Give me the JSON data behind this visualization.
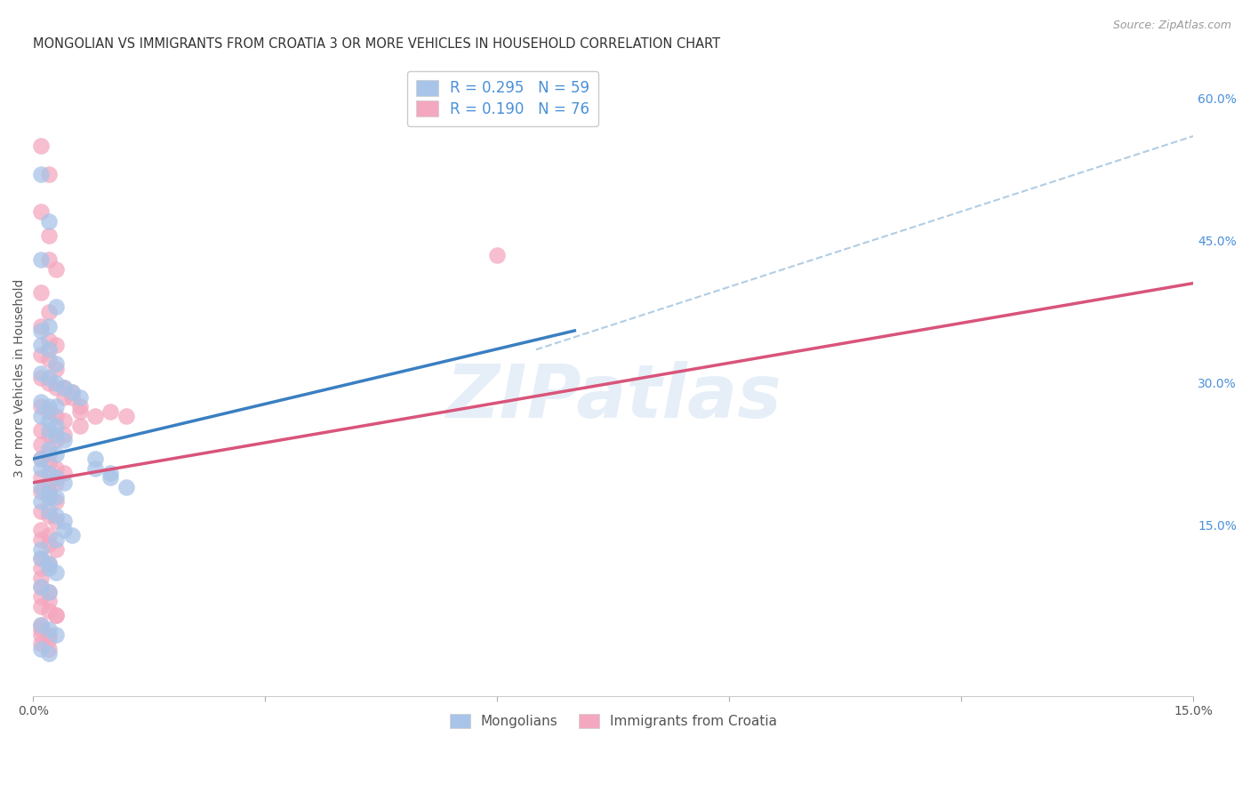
{
  "title": "MONGOLIAN VS IMMIGRANTS FROM CROATIA 3 OR MORE VEHICLES IN HOUSEHOLD CORRELATION CHART",
  "source": "Source: ZipAtlas.com",
  "ylabel": "3 or more Vehicles in Household",
  "xlim": [
    0.0,
    0.15
  ],
  "ylim": [
    -0.03,
    0.64
  ],
  "blue_R": "0.295",
  "blue_N": "59",
  "pink_R": "0.190",
  "pink_N": "76",
  "blue_color": "#a8c4e8",
  "pink_color": "#f4a8c0",
  "blue_line_color": "#3a7fc1",
  "pink_line_color": "#d9547a",
  "dashed_line_color": "#90b8d8",
  "watermark": "ZIPatlas",
  "legend_bottom_blue": "Mongolians",
  "legend_bottom_pink": "Immigrants from Croatia",
  "background_color": "#ffffff",
  "grid_color": "#cccccc",
  "blue_line": [
    0.0,
    0.22,
    0.07,
    0.355
  ],
  "pink_line": [
    0.0,
    0.195,
    0.15,
    0.405
  ],
  "dashed_line": [
    0.065,
    0.335,
    0.15,
    0.56
  ],
  "blue_scatter_x": [
    0.001,
    0.002,
    0.001,
    0.003,
    0.002,
    0.001,
    0.001,
    0.002,
    0.003,
    0.001,
    0.002,
    0.003,
    0.004,
    0.005,
    0.006,
    0.001,
    0.002,
    0.001,
    0.002,
    0.003,
    0.002,
    0.003,
    0.004,
    0.002,
    0.003,
    0.001,
    0.001,
    0.002,
    0.003,
    0.004,
    0.001,
    0.002,
    0.003,
    0.001,
    0.002,
    0.003,
    0.004,
    0.004,
    0.005,
    0.003,
    0.008,
    0.01,
    0.012,
    0.008,
    0.01,
    0.001,
    0.001,
    0.002,
    0.002,
    0.003,
    0.001,
    0.002,
    0.001,
    0.002,
    0.003,
    0.001,
    0.002,
    0.002,
    0.003
  ],
  "blue_scatter_y": [
    0.52,
    0.47,
    0.43,
    0.38,
    0.36,
    0.355,
    0.34,
    0.335,
    0.32,
    0.31,
    0.305,
    0.3,
    0.295,
    0.29,
    0.285,
    0.28,
    0.275,
    0.265,
    0.26,
    0.255,
    0.25,
    0.245,
    0.24,
    0.23,
    0.225,
    0.22,
    0.21,
    0.205,
    0.2,
    0.195,
    0.19,
    0.185,
    0.18,
    0.175,
    0.165,
    0.16,
    0.155,
    0.145,
    0.14,
    0.135,
    0.22,
    0.2,
    0.19,
    0.21,
    0.205,
    0.125,
    0.115,
    0.11,
    0.105,
    0.1,
    0.085,
    0.08,
    0.045,
    0.04,
    0.035,
    0.02,
    0.015,
    0.18,
    0.275
  ],
  "pink_scatter_x": [
    0.001,
    0.002,
    0.001,
    0.002,
    0.002,
    0.003,
    0.001,
    0.002,
    0.001,
    0.002,
    0.003,
    0.001,
    0.002,
    0.003,
    0.001,
    0.002,
    0.003,
    0.004,
    0.001,
    0.002,
    0.003,
    0.004,
    0.001,
    0.002,
    0.003,
    0.001,
    0.002,
    0.001,
    0.002,
    0.003,
    0.004,
    0.001,
    0.002,
    0.001,
    0.002,
    0.003,
    0.001,
    0.002,
    0.003,
    0.001,
    0.002,
    0.001,
    0.002,
    0.003,
    0.001,
    0.002,
    0.004,
    0.005,
    0.006,
    0.005,
    0.006,
    0.004,
    0.006,
    0.008,
    0.01,
    0.012,
    0.001,
    0.001,
    0.001,
    0.002,
    0.06,
    0.001,
    0.002,
    0.003,
    0.001,
    0.002,
    0.001,
    0.002,
    0.003,
    0.001,
    0.001,
    0.002,
    0.001,
    0.002,
    0.002,
    0.003
  ],
  "pink_scatter_y": [
    0.55,
    0.52,
    0.48,
    0.455,
    0.43,
    0.42,
    0.395,
    0.375,
    0.36,
    0.345,
    0.34,
    0.33,
    0.325,
    0.315,
    0.305,
    0.3,
    0.295,
    0.285,
    0.275,
    0.27,
    0.265,
    0.26,
    0.25,
    0.245,
    0.24,
    0.235,
    0.225,
    0.22,
    0.215,
    0.21,
    0.205,
    0.2,
    0.195,
    0.185,
    0.18,
    0.175,
    0.165,
    0.16,
    0.155,
    0.145,
    0.14,
    0.135,
    0.13,
    0.125,
    0.115,
    0.11,
    0.295,
    0.29,
    0.275,
    0.285,
    0.27,
    0.245,
    0.255,
    0.265,
    0.27,
    0.265,
    0.105,
    0.095,
    0.085,
    0.08,
    0.435,
    0.04,
    0.035,
    0.055,
    0.075,
    0.07,
    0.065,
    0.06,
    0.055,
    0.045,
    0.035,
    0.03,
    0.025,
    0.02,
    0.185,
    0.195
  ],
  "y_ticks_right": [
    0.0,
    0.15,
    0.3,
    0.45,
    0.6
  ],
  "y_tick_labels_right": [
    "",
    "15.0%",
    "30.0%",
    "45.0%",
    "60.0%"
  ]
}
